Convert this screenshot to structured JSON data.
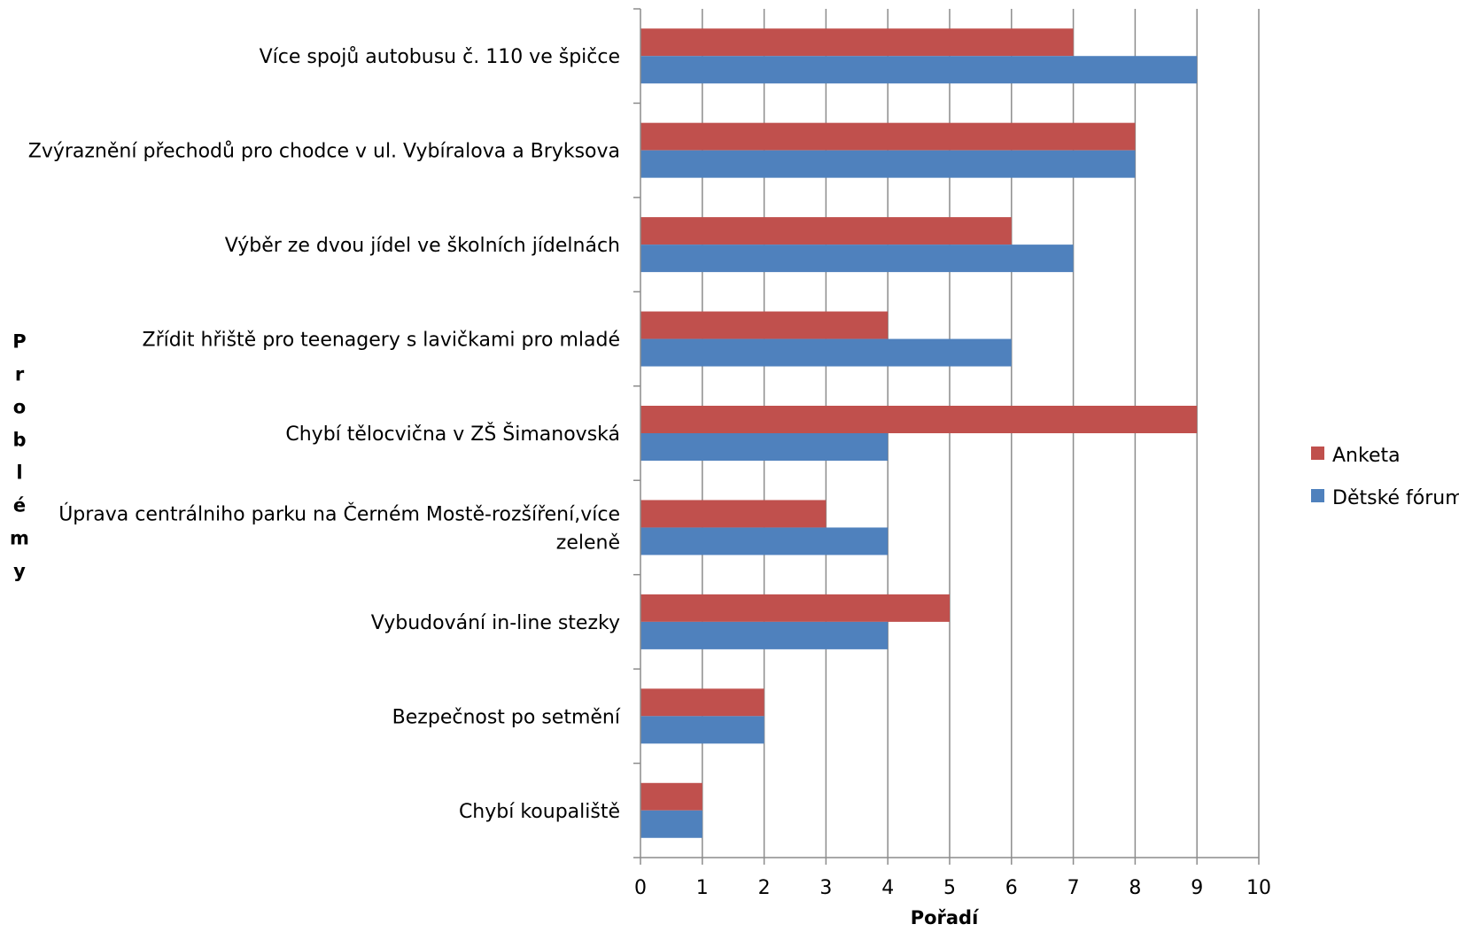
{
  "chart_data": {
    "type": "bar",
    "orientation": "horizontal",
    "title": "",
    "xlabel": "Pořadí",
    "ylabel": "Problémy",
    "xlim": [
      0,
      10
    ],
    "xticks": [
      "0",
      "1",
      "2",
      "3",
      "4",
      "5",
      "6",
      "7",
      "8",
      "9",
      "10"
    ],
    "grid": "vertical",
    "legend_position": "right",
    "categories": [
      [
        "Více spojů autobusu č. 110 ve špičce"
      ],
      [
        "Zvýraznění přechodů pro chodce v ul. Vybíralova a Bryksova"
      ],
      [
        "Výběr ze dvou jídel ve školních jídelnách"
      ],
      [
        "Zřídit hřiště pro teenagery s lavičkami pro mladé"
      ],
      [
        "Chybí tělocvična v ZŠ Šimanovská"
      ],
      [
        "Úprava centrálniho parku na Černém  Mostě-rozšíření,více",
        "zeleně"
      ],
      [
        "Vybudování in-line stezky"
      ],
      [
        "Bezpečnost po setmění"
      ],
      [
        "Chybí koupaliště"
      ]
    ],
    "series": [
      {
        "name": "Anketa",
        "color": "#C0504D",
        "values": [
          7,
          8,
          6,
          4,
          9,
          3,
          5,
          2,
          1
        ]
      },
      {
        "name": "Dětské fórum",
        "color": "#4F81BD",
        "values": [
          9,
          8,
          7,
          6,
          4,
          4,
          4,
          2,
          1
        ]
      }
    ]
  }
}
